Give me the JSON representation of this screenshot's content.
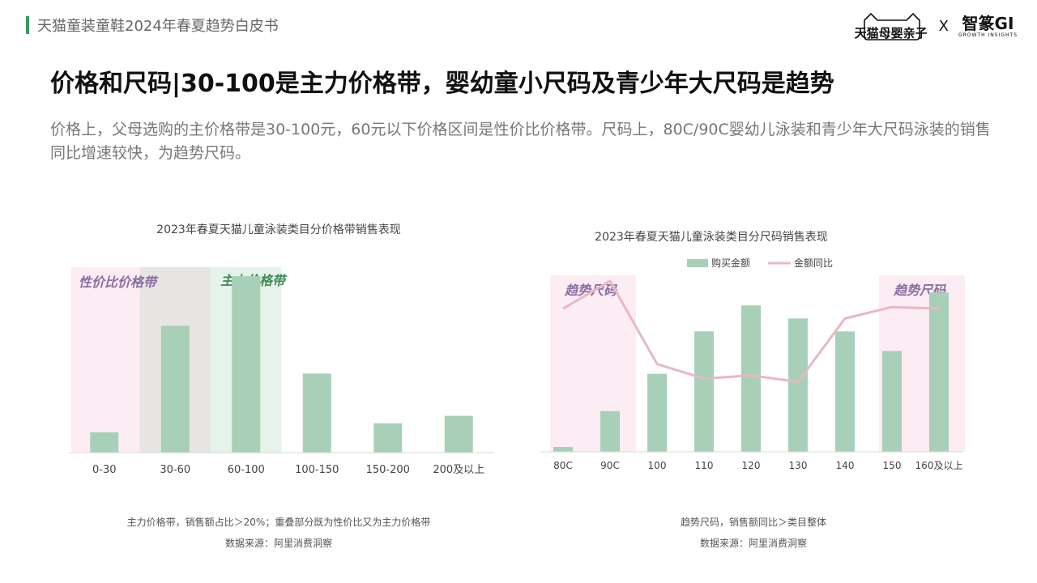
{
  "header": {
    "doc_title": "天猫童装童鞋2024年春夏趋势白皮书",
    "logo_tmall": "天猫母婴亲子",
    "logo_x": "X",
    "logo_gi_main": "智篆GI",
    "logo_gi_sub": "GROWTH INSIGHTS"
  },
  "main": {
    "title": "价格和尺码|30-100是主力价格带，婴幼童小尺码及青少年大尺码是趋势",
    "subtitle": "价格上，父母选购的主价格带是30-100元，60元以下价格区间是性价比价格带。尺码上，80C/90C婴幼儿泳装和青少年大尺码泳装的销售同比增速较快，为趋势尺码。"
  },
  "chart_data": [
    {
      "type": "bar",
      "title": "2023年春夏天猫儿童泳装类目分价格带销售表现",
      "categories": [
        "0-30",
        "30-60",
        "60-100",
        "100-150",
        "150-200",
        "200及以上"
      ],
      "values": [
        11,
        69,
        96,
        43,
        16,
        20
      ],
      "ylim": [
        0,
        100
      ],
      "grid": false,
      "highlights": [
        {
          "label": "性价比价格带",
          "from": "0-30",
          "to": "30-60",
          "color": "#fcecf3"
        },
        {
          "label": "主力价格带",
          "from": "60-100",
          "to": "60-100",
          "color": "#e6f3ea"
        }
      ],
      "overlap_color": "#e7e5e3",
      "bar_color": "#a8d0b8",
      "notes": [
        "主力价格带，销售额占比＞20%；重叠部分既为性价比又为主力价格带",
        "数据来源：阿里消费洞察"
      ]
    },
    {
      "type": "bar",
      "title": "2023年春夏天猫儿童泳装类目分尺码销售表现",
      "categories": [
        "80C",
        "90C",
        "100",
        "110",
        "120",
        "130",
        "140",
        "150",
        "160及以上"
      ],
      "series": [
        {
          "name": "购买金额",
          "type": "bar",
          "color": "#a8d0b8",
          "values": [
            3,
            25,
            48,
            74,
            90,
            82,
            74,
            62,
            98
          ]
        },
        {
          "name": "金额同比",
          "type": "line",
          "color": "#e8b7c8",
          "values": [
            88,
            105,
            54,
            45,
            47,
            43,
            82,
            89,
            88
          ]
        }
      ],
      "ylim": [
        0,
        110
      ],
      "legend": "top",
      "grid": false,
      "highlights": [
        {
          "label": "趋势尺码",
          "from": "80C",
          "to": "90C",
          "color": "#fcecf3"
        },
        {
          "label": "趋势尺码",
          "from": "150",
          "to": "160及以上",
          "color": "#fcecf3"
        }
      ],
      "notes": [
        "趋势尺码，销售额同比＞类目整体",
        "数据来源：阿里消费洞察"
      ]
    }
  ]
}
